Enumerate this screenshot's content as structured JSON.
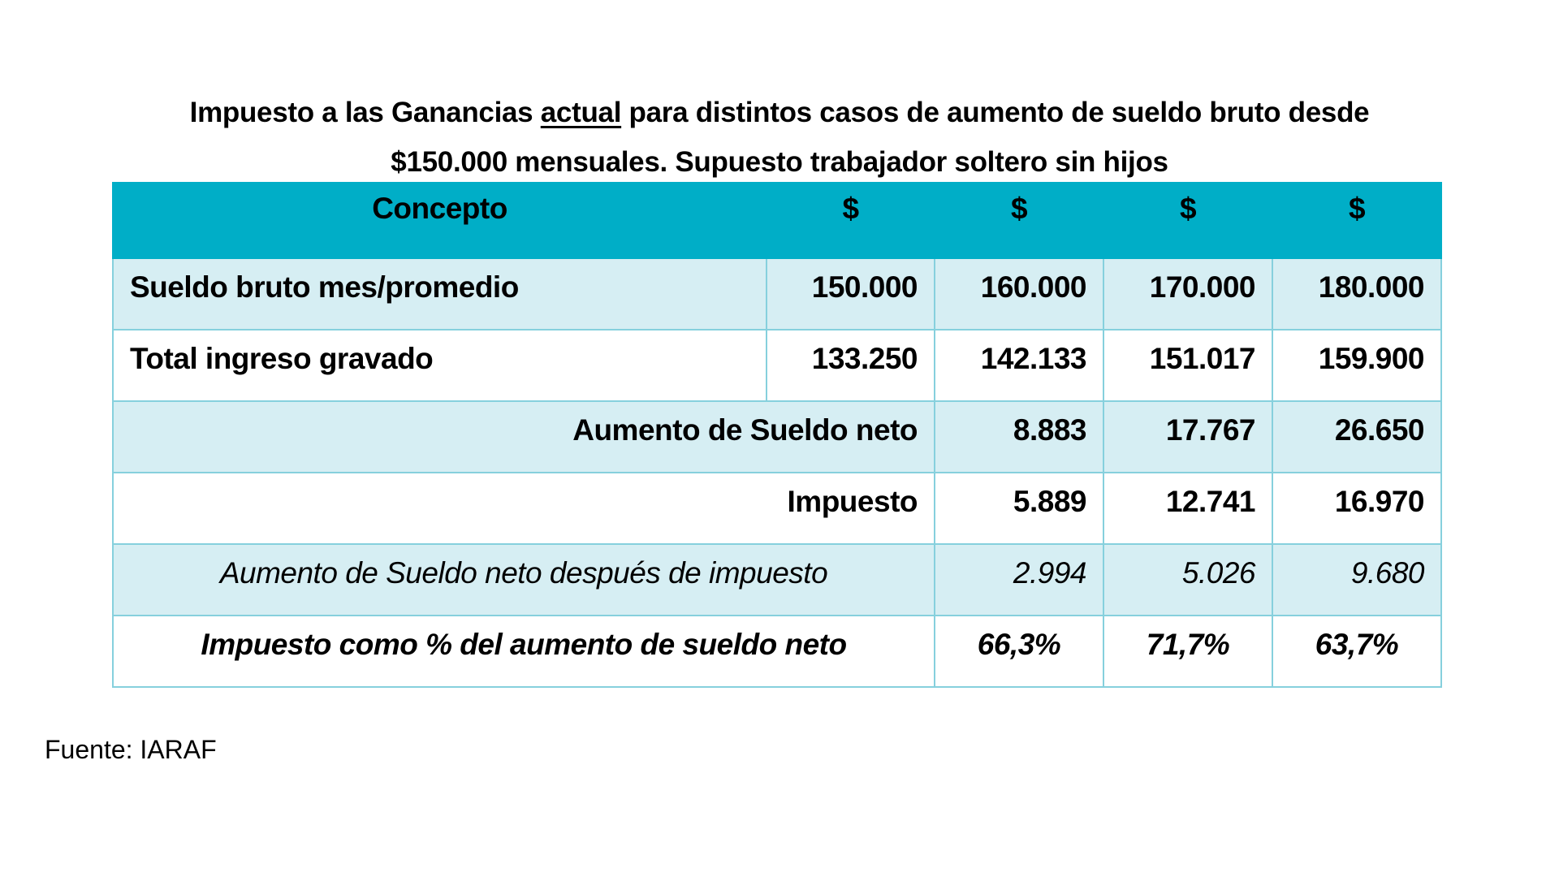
{
  "title": {
    "part1": "Impuesto a las Ganancias ",
    "underlined": "actual",
    "part2": " para distintos casos de aumento de sueldo bruto desde",
    "line2": "$150.000 mensuales. Supuesto trabajador soltero sin hijos"
  },
  "table": {
    "headers": [
      "Concepto",
      "$",
      "$",
      "$",
      "$"
    ],
    "rows": [
      {
        "label": "Sueldo bruto mes/promedio",
        "values": [
          "150.000",
          "160.000",
          "170.000",
          "180.000"
        ]
      },
      {
        "label": "Total ingreso gravado",
        "values": [
          "133.250",
          "142.133",
          "151.017",
          "159.900"
        ]
      },
      {
        "label": "Aumento de Sueldo neto",
        "values": [
          "8.883",
          "17.767",
          "26.650"
        ]
      },
      {
        "label": "Impuesto",
        "values": [
          "5.889",
          "12.741",
          "16.970"
        ]
      },
      {
        "label": "Aumento de Sueldo neto después de impuesto",
        "values": [
          "2.994",
          "5.026",
          "9.680"
        ]
      },
      {
        "label": "Impuesto como % del aumento de sueldo neto",
        "values": [
          "66,3%",
          "71,7%",
          "63,7%"
        ]
      }
    ]
  },
  "source": "Fuente: IARAF",
  "colors": {
    "header": "#00aec7",
    "light_row": "#d6eef3",
    "border": "#86d0dd"
  }
}
